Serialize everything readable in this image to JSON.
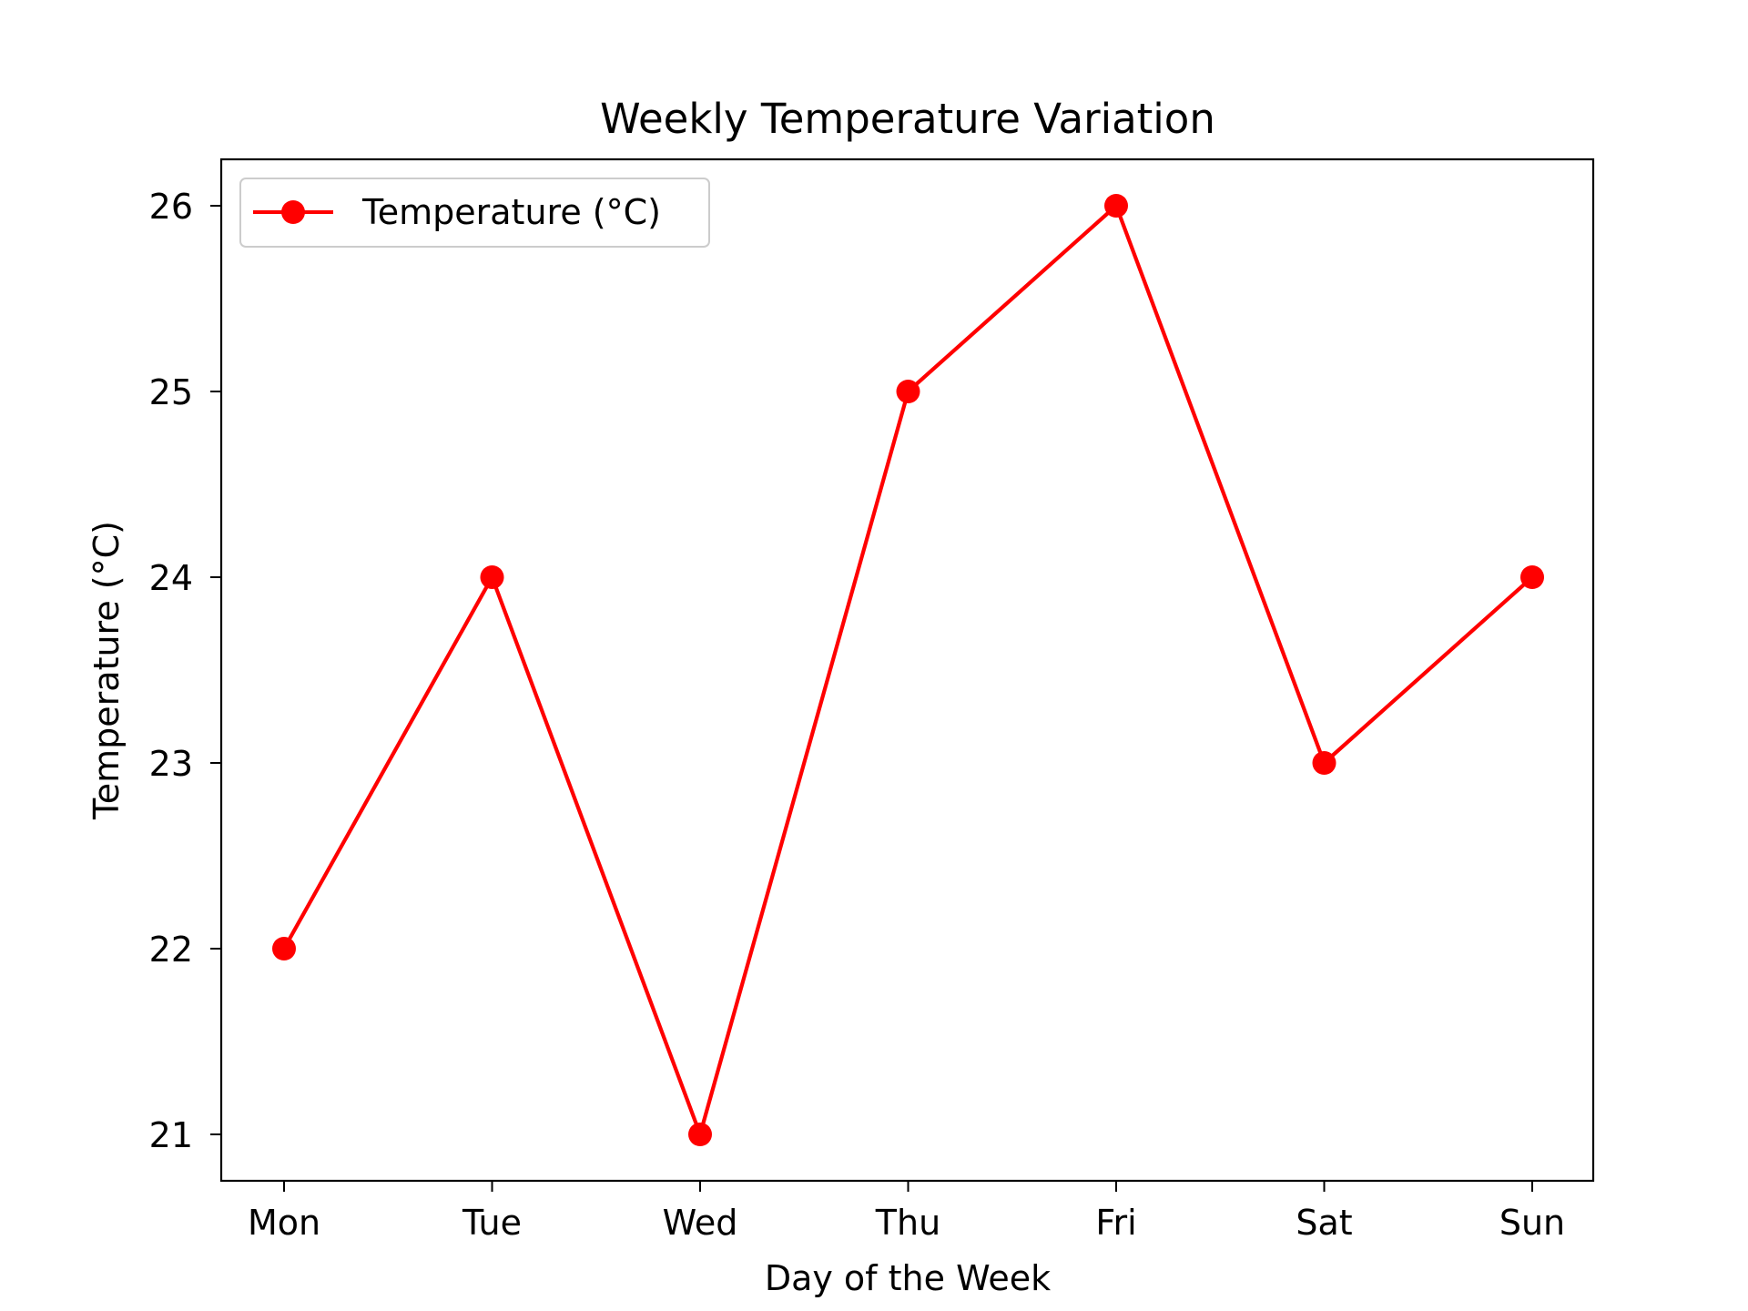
{
  "chart_data": {
    "type": "line",
    "title": "Weekly Temperature Variation",
    "xlabel": "Day of the Week",
    "ylabel": "Temperature (°C)",
    "categories": [
      "Mon",
      "Tue",
      "Wed",
      "Thu",
      "Fri",
      "Sat",
      "Sun"
    ],
    "series": [
      {
        "name": "Temperature (°C)",
        "values": [
          22,
          24,
          21,
          25,
          26,
          23,
          24
        ],
        "color": "#ff0000",
        "marker": "circle"
      }
    ],
    "yticks": [
      21,
      22,
      23,
      24,
      25,
      26
    ],
    "ylim": [
      20.75,
      26.25
    ],
    "grid": false,
    "legend_position": "top-left"
  }
}
